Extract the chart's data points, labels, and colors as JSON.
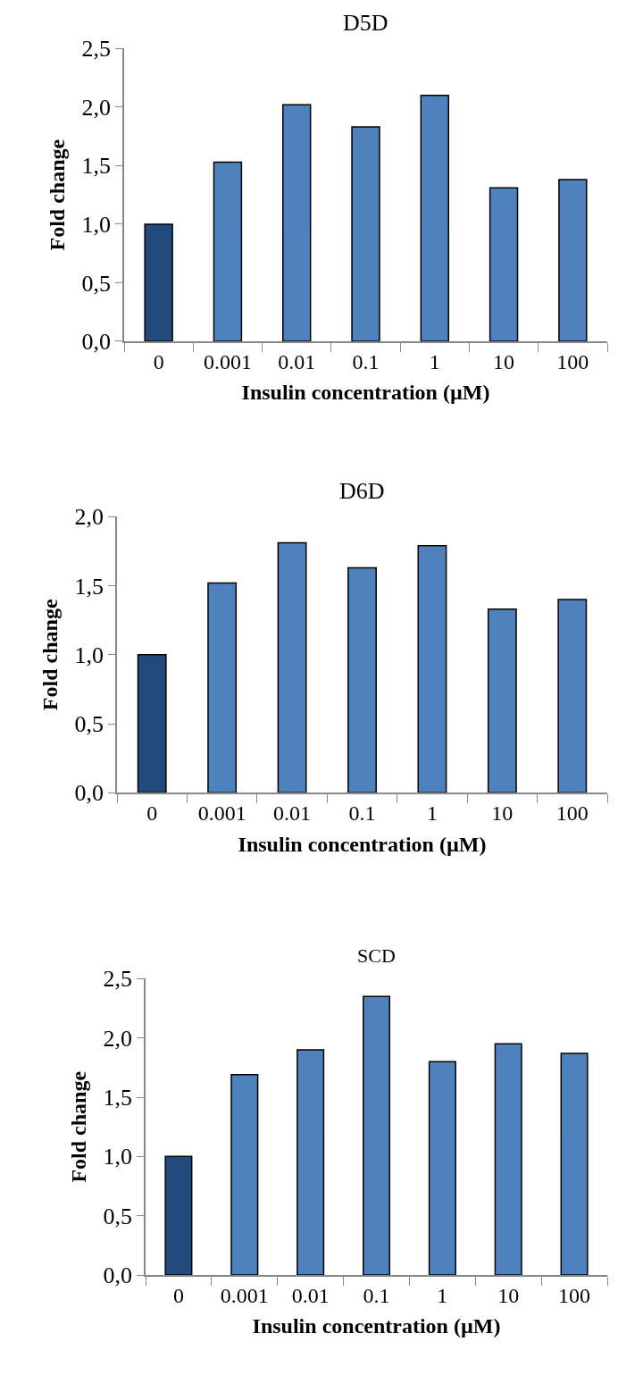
{
  "chart_data": [
    {
      "type": "bar",
      "title": "D5D",
      "xlabel": "Insulin concentration (µM)",
      "ylabel": "Fold change",
      "categories": [
        "0",
        "0.001",
        "0.01",
        "0.1",
        "1",
        "10",
        "100"
      ],
      "values": [
        1.0,
        1.53,
        2.02,
        1.83,
        2.1,
        1.31,
        1.38
      ],
      "colors": [
        "#234a7c",
        "#4f81bd",
        "#4f81bd",
        "#4f81bd",
        "#4f81bd",
        "#4f81bd",
        "#4f81bd"
      ],
      "ylim": [
        0,
        2.5
      ],
      "yticks": [
        {
          "value": 0,
          "label": "0,0"
        },
        {
          "value": 0.5,
          "label": "0,5"
        },
        {
          "value": 1,
          "label": "1,0"
        },
        {
          "value": 1.5,
          "label": "1,5"
        },
        {
          "value": 2,
          "label": "2,0"
        },
        {
          "value": 2.5,
          "label": "2,5"
        }
      ],
      "grid": false,
      "legend": false
    },
    {
      "type": "bar",
      "title": "D6D",
      "xlabel": "Insulin concentration (µM)",
      "ylabel": "Fold change",
      "categories": [
        "0",
        "0.001",
        "0.01",
        "0.1",
        "1",
        "10",
        "100"
      ],
      "values": [
        1.0,
        1.52,
        1.81,
        1.63,
        1.79,
        1.33,
        1.4
      ],
      "colors": [
        "#234a7c",
        "#4f81bd",
        "#4f81bd",
        "#4f81bd",
        "#4f81bd",
        "#4f81bd",
        "#4f81bd"
      ],
      "ylim": [
        0,
        2.0
      ],
      "yticks": [
        {
          "value": 0,
          "label": "0,0"
        },
        {
          "value": 0.5,
          "label": "0,5"
        },
        {
          "value": 1,
          "label": "1,0"
        },
        {
          "value": 1.5,
          "label": "1,5"
        },
        {
          "value": 2,
          "label": "2,0"
        }
      ],
      "grid": false,
      "legend": false
    },
    {
      "type": "bar",
      "title": "SCD",
      "xlabel": "Insulin concentration (µM)",
      "ylabel": "Fold change",
      "categories": [
        "0",
        "0.001",
        "0.01",
        "0.1",
        "1",
        "10",
        "100"
      ],
      "values": [
        1.0,
        1.69,
        1.9,
        2.35,
        1.8,
        1.95,
        1.87
      ],
      "colors": [
        "#234a7c",
        "#4f81bd",
        "#4f81bd",
        "#4f81bd",
        "#4f81bd",
        "#4f81bd",
        "#4f81bd"
      ],
      "ylim": [
        0,
        2.5
      ],
      "yticks": [
        {
          "value": 0,
          "label": "0,0"
        },
        {
          "value": 0.5,
          "label": "0,5"
        },
        {
          "value": 1,
          "label": "1,0"
        },
        {
          "value": 1.5,
          "label": "1,5"
        },
        {
          "value": 2,
          "label": "2,0"
        },
        {
          "value": 2.5,
          "label": "2,5"
        }
      ],
      "grid": false,
      "legend": false
    }
  ]
}
